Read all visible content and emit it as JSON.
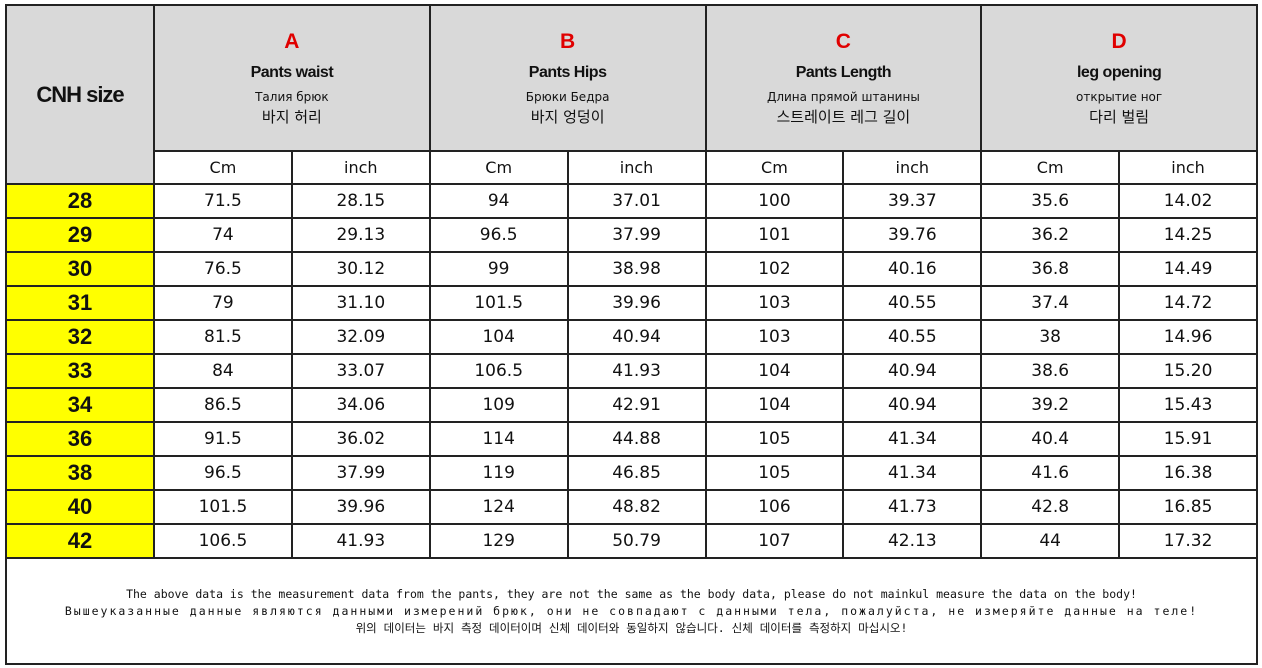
{
  "header": {
    "size_label": "CNH size",
    "groups": [
      {
        "letter": "A",
        "name": "Pants waist",
        "ru": "Талия брюк",
        "ko": "바지 허리"
      },
      {
        "letter": "B",
        "name": "Pants Hips",
        "ru": "Брюки Бедра",
        "ko": "바지 엉덩이"
      },
      {
        "letter": "C",
        "name": "Pants Length",
        "ru": "Длина прямой штанины",
        "ko": "스트레이트 레그 길이"
      },
      {
        "letter": "D",
        "name": "leg opening",
        "ru": "открытие ног",
        "ko": "다리 벌림"
      }
    ],
    "units": [
      "Cm",
      "inch",
      "Cm",
      "inch",
      "Cm",
      "inch",
      "Cm",
      "inch"
    ]
  },
  "table": {
    "rows": [
      [
        "28",
        "71.5",
        "28.15",
        "94",
        "37.01",
        "100",
        "39.37",
        "35.6",
        "14.02"
      ],
      [
        "29",
        "74",
        "29.13",
        "96.5",
        "37.99",
        "101",
        "39.76",
        "36.2",
        "14.25"
      ],
      [
        "30",
        "76.5",
        "30.12",
        "99",
        "38.98",
        "102",
        "40.16",
        "36.8",
        "14.49"
      ],
      [
        "31",
        "79",
        "31.10",
        "101.5",
        "39.96",
        "103",
        "40.55",
        "37.4",
        "14.72"
      ],
      [
        "32",
        "81.5",
        "32.09",
        "104",
        "40.94",
        "103",
        "40.55",
        "38",
        "14.96"
      ],
      [
        "33",
        "84",
        "33.07",
        "106.5",
        "41.93",
        "104",
        "40.94",
        "38.6",
        "15.20"
      ],
      [
        "34",
        "86.5",
        "34.06",
        "109",
        "42.91",
        "104",
        "40.94",
        "39.2",
        "15.43"
      ],
      [
        "36",
        "91.5",
        "36.02",
        "114",
        "44.88",
        "105",
        "41.34",
        "40.4",
        "15.91"
      ],
      [
        "38",
        "96.5",
        "37.99",
        "119",
        "46.85",
        "105",
        "41.34",
        "41.6",
        "16.38"
      ],
      [
        "40",
        "101.5",
        "39.96",
        "124",
        "48.82",
        "106",
        "41.73",
        "42.8",
        "16.85"
      ],
      [
        "42",
        "106.5",
        "41.93",
        "129",
        "50.79",
        "107",
        "42.13",
        "44",
        "17.32"
      ]
    ]
  },
  "footer": {
    "lines": [
      "The above data is the measurement data from the pants, they are not the same as the body data, please do not mainkul measure the data on the body!",
      "Вышеуказанные данные являются данными измерений брюк, они не совпадают с данными тела, пожалуйста, не измеряйте данные на теле!",
      "위의 데이터는 바지 측정 데이터이며 신체 데이터와 동일하지 않습니다. 신체 데이터를 측정하지 마십시오!"
    ]
  }
}
